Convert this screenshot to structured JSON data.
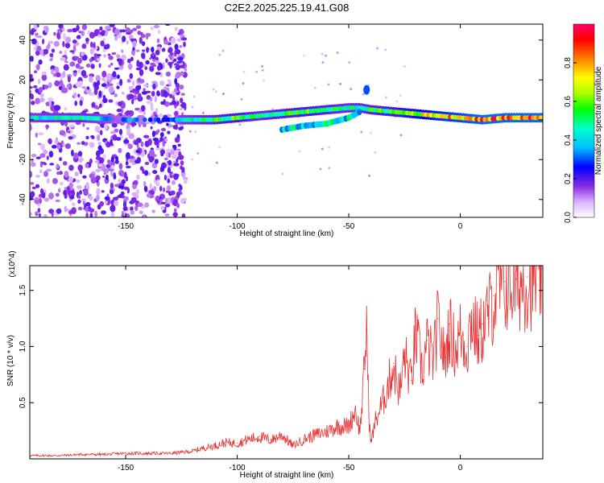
{
  "title": "C2E2.2025.225.19.41.G08",
  "colorbar": {
    "label": "Normalized spectral amplitude",
    "ticks": [
      0.0,
      0.2,
      0.4,
      0.6,
      0.8
    ],
    "tick_labels": [
      "0.0",
      "0.2",
      "0.4",
      "0.6",
      "0.8"
    ],
    "range": [
      0,
      1
    ],
    "colors": [
      "#ffffff",
      "#d9b3ff",
      "#8a2be2",
      "#0000ff",
      "#00bfff",
      "#00ffcc",
      "#00ff00",
      "#aaff00",
      "#ffff00",
      "#ff8000",
      "#ff0000",
      "#ff0066"
    ]
  },
  "chart_data": [
    {
      "type": "heatmap",
      "xlabel": "Height of straight line (km)",
      "ylabel": "Frequency (Hz)",
      "xlim": [
        -193,
        37
      ],
      "ylim": [
        -49,
        48
      ],
      "xticks": [
        -150,
        -100,
        -50,
        0
      ],
      "xtick_labels": [
        "-150",
        "-100",
        "-50",
        "0"
      ],
      "yticks": [
        -40,
        -20,
        0,
        20,
        40
      ],
      "ytick_labels": [
        "-40",
        "-20",
        "0",
        "20",
        "40"
      ],
      "main_band": {
        "x": [
          -193,
          -170,
          -150,
          -130,
          -125,
          -110,
          -100,
          -90,
          -80,
          -70,
          -60,
          -50,
          -45,
          -40,
          -30,
          -20,
          -10,
          0,
          10,
          20,
          30,
          37
        ],
        "frequency": [
          1,
          1,
          0,
          0,
          0,
          0,
          1,
          2,
          3,
          4,
          5,
          6,
          6,
          5,
          4,
          3,
          2,
          1,
          0,
          1,
          1,
          1
        ],
        "amplitude": [
          0.45,
          0.5,
          0.35,
          0.3,
          0.45,
          0.55,
          0.6,
          0.5,
          0.55,
          0.6,
          0.55,
          0.5,
          0.5,
          0.55,
          0.6,
          0.7,
          0.8,
          0.85,
          0.9,
          0.9,
          0.9,
          0.9
        ]
      },
      "secondary_band": {
        "x": [
          -80,
          -70,
          -60,
          -50,
          -45
        ],
        "frequency": [
          -5,
          -3,
          -2,
          1,
          4
        ]
      },
      "notable_feature": {
        "x": -42,
        "frequency": 15
      }
    },
    {
      "type": "line",
      "xlabel": "Height of straight line (km)",
      "ylabel": "SNR (10 * v/v)",
      "y_multiplier": "(x10^4)",
      "xlim": [
        -193,
        37
      ],
      "ylim": [
        0,
        1.72
      ],
      "xticks": [
        -150,
        -100,
        -50,
        0
      ],
      "xtick_labels": [
        "-150",
        "-100",
        "-50",
        "0"
      ],
      "yticks": [
        0.5,
        1.0,
        1.5
      ],
      "ytick_labels": [
        "0.5",
        "1.0",
        "1.5"
      ],
      "color": "#e83030",
      "series": [
        {
          "x": [
            -193,
            -180,
            -170,
            -160,
            -150,
            -140,
            -130,
            -125,
            -120,
            -115,
            -110,
            -105,
            -100,
            -95,
            -90,
            -85,
            -80,
            -75,
            -70,
            -65,
            -60,
            -55,
            -50,
            -47,
            -45,
            -43,
            -42,
            -41,
            -40,
            -38,
            -35,
            -32,
            -30,
            -27,
            -25,
            -22,
            -20,
            -17,
            -15,
            -12,
            -10,
            -7,
            -5,
            -2,
            0,
            3,
            5,
            8,
            10,
            13,
            15,
            18,
            20,
            25,
            30,
            37
          ],
          "y": [
            0.03,
            0.03,
            0.04,
            0.04,
            0.05,
            0.05,
            0.05,
            0.06,
            0.07,
            0.1,
            0.12,
            0.15,
            0.14,
            0.18,
            0.2,
            0.17,
            0.22,
            0.12,
            0.18,
            0.22,
            0.25,
            0.3,
            0.3,
            0.45,
            0.25,
            0.8,
            1.25,
            0.4,
            0.15,
            0.35,
            0.5,
            0.7,
            0.85,
            0.6,
            0.95,
            0.7,
            1.15,
            0.8,
            1.05,
            0.9,
            1.25,
            0.9,
            1.2,
            1.0,
            1.15,
            1.0,
            1.3,
            1.1,
            1.2,
            1.35,
            1.45,
            1.55,
            1.58,
            1.6,
            1.62,
            1.68
          ]
        }
      ]
    }
  ]
}
